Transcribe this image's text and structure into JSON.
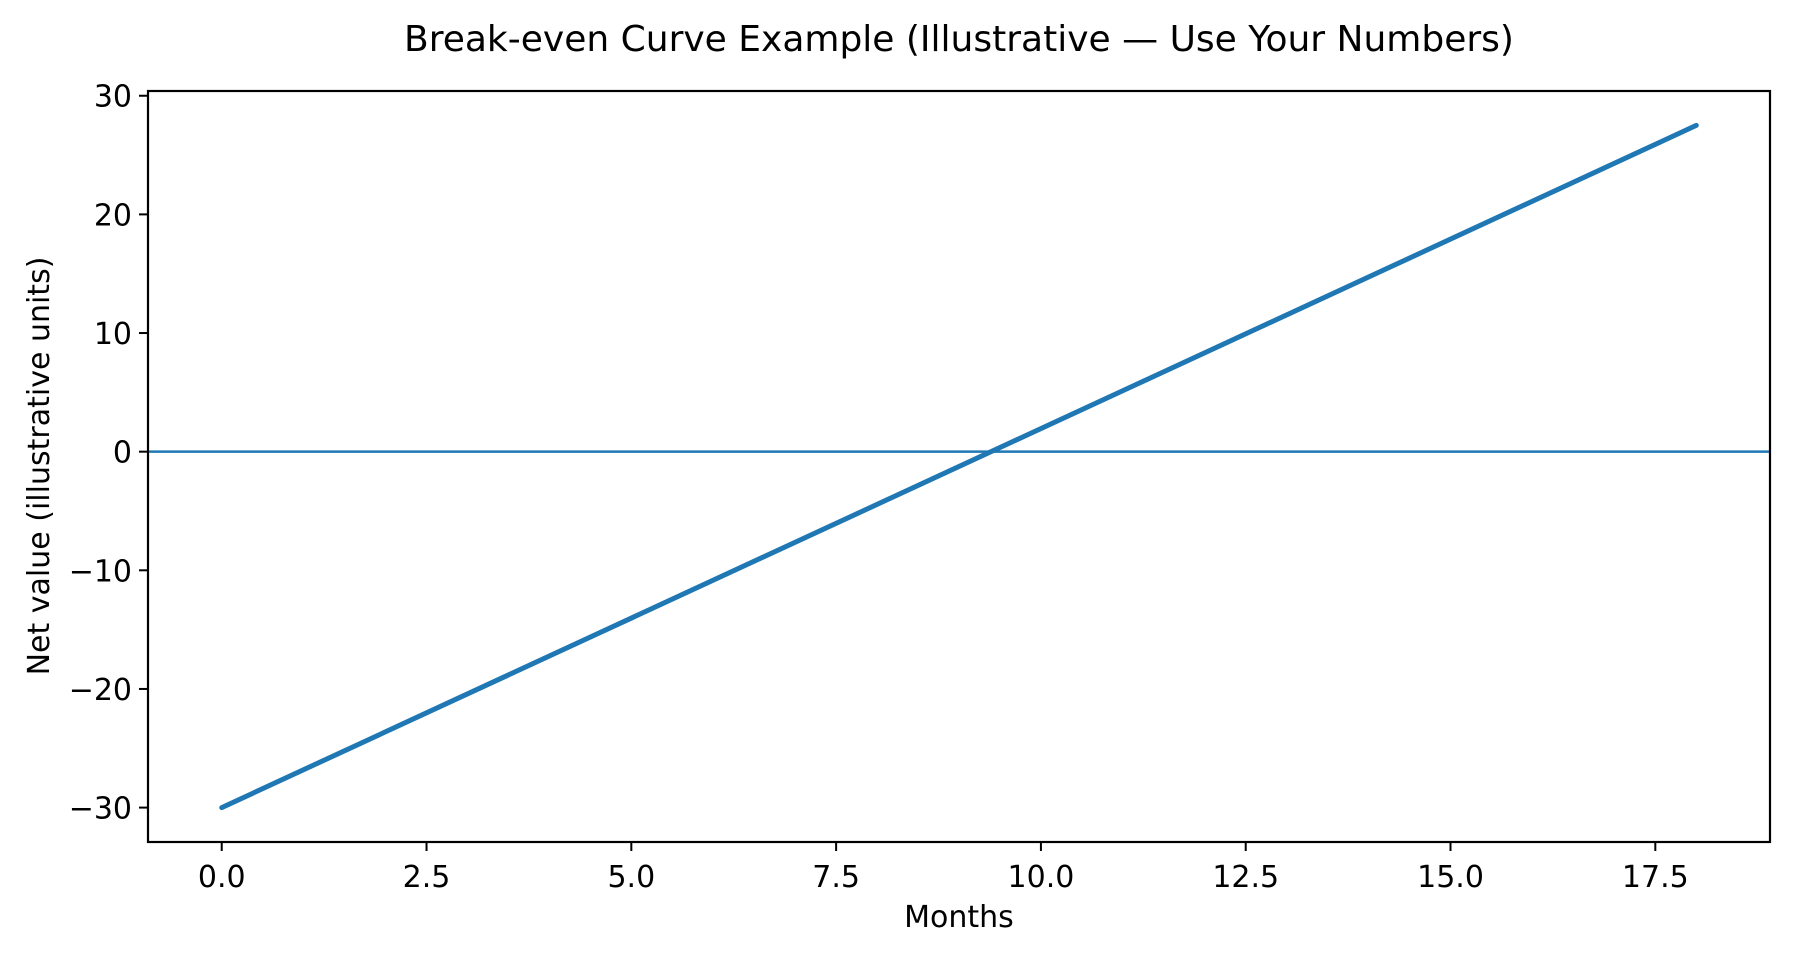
{
  "figure": {
    "background_color": "#ffffff",
    "text_color": "#000000",
    "spine_color": "#000000"
  },
  "chart_data": {
    "type": "line",
    "title": "Break-even Curve Example (Illustrative — Use Your Numbers)",
    "xlabel": "Months",
    "ylabel": "Net value (illustrative units)",
    "xlim": [
      -0.9,
      18.9
    ],
    "ylim": [
      -32.9,
      30.4
    ],
    "x_ticks": [
      0.0,
      2.5,
      5.0,
      7.5,
      10.0,
      12.5,
      15.0,
      17.5
    ],
    "x_tick_labels": [
      "0.0",
      "2.5",
      "5.0",
      "7.5",
      "10.0",
      "12.5",
      "15.0",
      "17.5"
    ],
    "y_ticks": [
      -30,
      -20,
      -10,
      0,
      10,
      20,
      30
    ],
    "y_tick_labels": [
      "−30",
      "−20",
      "−10",
      "0",
      "10",
      "20",
      "30"
    ],
    "grid": false,
    "legend": null,
    "series": [
      {
        "name": "net-value-line",
        "color": "#1f77b4",
        "linewidth": 5,
        "points": [
          [
            0,
            -30
          ],
          [
            18,
            27.5
          ]
        ]
      }
    ],
    "axhline": {
      "name": "zero-line",
      "y": 0,
      "color": "#1f77b4",
      "linewidth": 2.5
    },
    "break_even_month_approx": 9.4
  }
}
